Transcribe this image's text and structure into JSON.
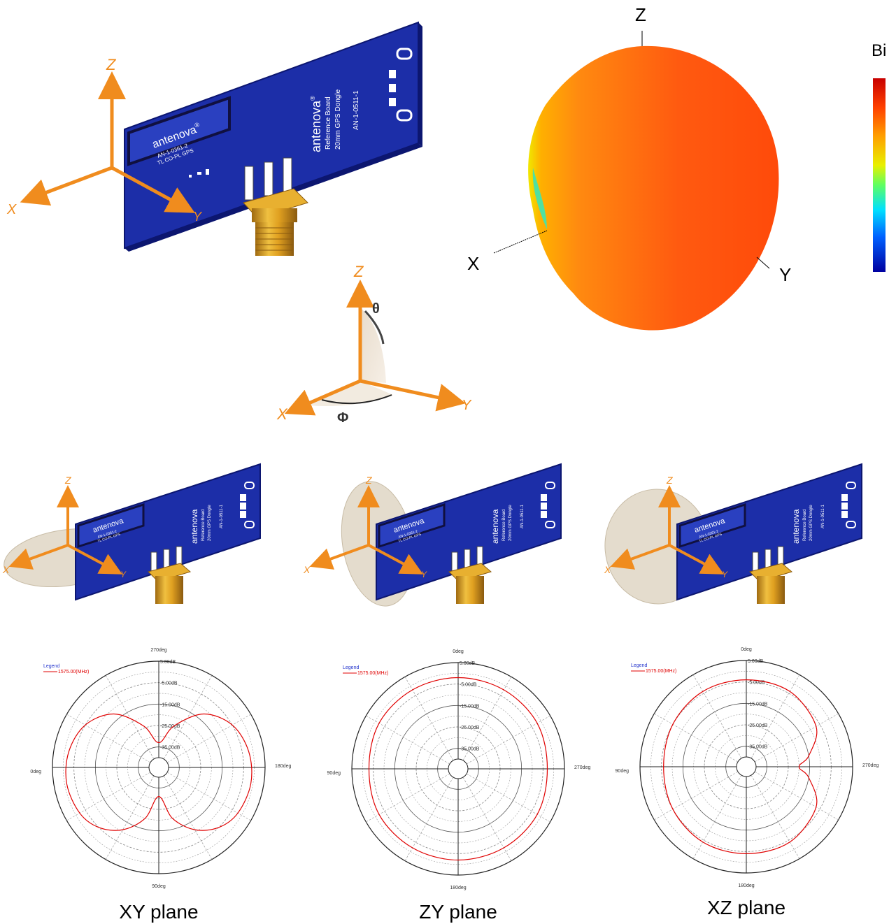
{
  "top_board": {
    "axes": {
      "x": "X",
      "y": "Y",
      "z": "Z"
    },
    "module": {
      "brand": "antenova",
      "registered": "®",
      "part": "AN-1-0361-2",
      "line": "TL  CO-PL  GPS"
    },
    "board": {
      "brand": "antenova",
      "registered": "®",
      "line1": "Reference Board",
      "line2": "20mm  GPS  Dongle",
      "part": "AN-1-0511-1"
    }
  },
  "pattern_3d": {
    "axes": {
      "x": "X",
      "y": "Y",
      "z": "Z"
    },
    "colorbar_label": "Bi"
  },
  "angle_diagram": {
    "axes": {
      "x": "X",
      "y": "Y",
      "z": "Z"
    },
    "theta": "θ",
    "phi": "Φ"
  },
  "plane_boards": [
    {
      "axes": {
        "x": "X",
        "y": "Y",
        "z": "Z"
      }
    },
    {
      "axes": {
        "x": "X",
        "y": "Y",
        "z": "Z"
      }
    },
    {
      "axes": {
        "x": "X",
        "y": "Y",
        "z": "Z"
      }
    }
  ],
  "chart_data": [
    {
      "type": "polar",
      "caption": "XY plane",
      "legend_title": "Legend",
      "legend_entry": "1575.00(MHz)",
      "angle_labels": {
        "top": "270deg",
        "left": "0deg",
        "right": "180deg",
        "bottom": "90deg"
      },
      "radial_labels": [
        "5.00dB",
        "-5.00dB",
        "-15.00dB",
        "-25.00dB",
        "-35.00dB"
      ],
      "r_range_db": [
        -40,
        5
      ],
      "series": [
        {
          "name": "1575.00(MHz)",
          "gain_db_by_screen_angle": [
            [
              0,
              -33
            ],
            [
              20,
              -24
            ],
            [
              40,
              -12
            ],
            [
              60,
              -5
            ],
            [
              80,
              -2
            ],
            [
              100,
              -1
            ],
            [
              120,
              -2
            ],
            [
              135,
              -5
            ],
            [
              150,
              -11
            ],
            [
              165,
              -20
            ],
            [
              180,
              -31
            ],
            [
              195,
              -20
            ],
            [
              210,
              -11
            ],
            [
              225,
              -5
            ],
            [
              240,
              -2
            ],
            [
              260,
              -1
            ],
            [
              280,
              -2
            ],
            [
              300,
              -5
            ],
            [
              320,
              -12
            ],
            [
              340,
              -24
            ]
          ]
        }
      ]
    },
    {
      "type": "polar",
      "caption": "ZY plane",
      "legend_title": "Legend",
      "legend_entry": "1575.00(MHz)",
      "angle_labels": {
        "top": "0deg",
        "left": "90deg",
        "right": "270deg",
        "bottom": "180deg"
      },
      "radial_labels": [
        "5.00dB",
        "-5.00dB",
        "-15.00dB",
        "-25.00dB",
        "-35.00dB"
      ],
      "r_range_db": [
        -40,
        5
      ],
      "series": [
        {
          "name": "1575.00(MHz)",
          "gain_db_by_screen_angle": [
            [
              0,
              -2
            ],
            [
              30,
              -2
            ],
            [
              60,
              -2
            ],
            [
              90,
              -3
            ],
            [
              120,
              -2
            ],
            [
              150,
              -2
            ],
            [
              180,
              -2
            ],
            [
              210,
              -2
            ],
            [
              240,
              -2
            ],
            [
              270,
              -3
            ],
            [
              300,
              -2
            ],
            [
              330,
              -2
            ]
          ]
        }
      ]
    },
    {
      "type": "polar",
      "caption": "XZ plane",
      "legend_title": "Legend",
      "legend_entry": "1575.00(MHz)",
      "angle_labels": {
        "top": "0deg",
        "left": "90deg",
        "right": "270deg",
        "bottom": "180deg"
      },
      "radial_labels": [
        "5.00dB",
        "-5.00dB",
        "-15.00dB",
        "-25.00dB",
        "-35.00dB"
      ],
      "r_range_db": [
        -40,
        5
      ],
      "series": [
        {
          "name": "1575.00(MHz)",
          "gain_db_by_screen_angle": [
            [
              0,
              -4
            ],
            [
              30,
              -4
            ],
            [
              60,
              -7
            ],
            [
              80,
              -15
            ],
            [
              90,
              -20
            ],
            [
              100,
              -15
            ],
            [
              120,
              -7
            ],
            [
              150,
              -4
            ],
            [
              180,
              -4
            ],
            [
              210,
              -4
            ],
            [
              240,
              -5
            ],
            [
              270,
              -6
            ],
            [
              300,
              -5
            ],
            [
              330,
              -4
            ]
          ]
        }
      ]
    }
  ]
}
